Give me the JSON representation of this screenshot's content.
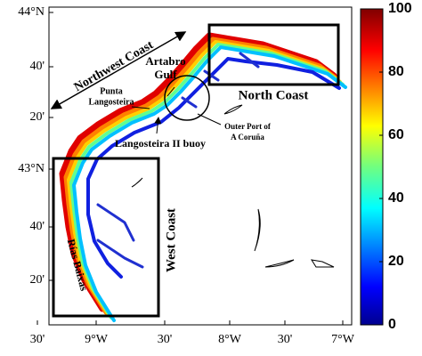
{
  "map": {
    "lat_labels": [
      "44°N",
      "40'",
      "20'",
      "43°N",
      "40'",
      "20'"
    ],
    "lon_labels": [
      "30'",
      "9°W",
      "30'",
      "8°W",
      "30'",
      "7°W"
    ],
    "colorbar": {
      "range": [
        0,
        100
      ],
      "ticks": [
        0,
        20,
        40,
        60,
        80,
        100
      ]
    },
    "annotations": {
      "northwest_coast": "Northwest Coast",
      "north_coast": "North Coast",
      "artabro_gulf": [
        "Artabro",
        "Gulf"
      ],
      "punta_langosteira": [
        "Punta",
        "Langosteira"
      ],
      "outer_port": [
        "Outer Port of",
        "A Coruña"
      ],
      "buoy": "Langosteira II buoy",
      "west_coast": "West Coast",
      "rias_baixas": "Rías Baixas"
    }
  }
}
